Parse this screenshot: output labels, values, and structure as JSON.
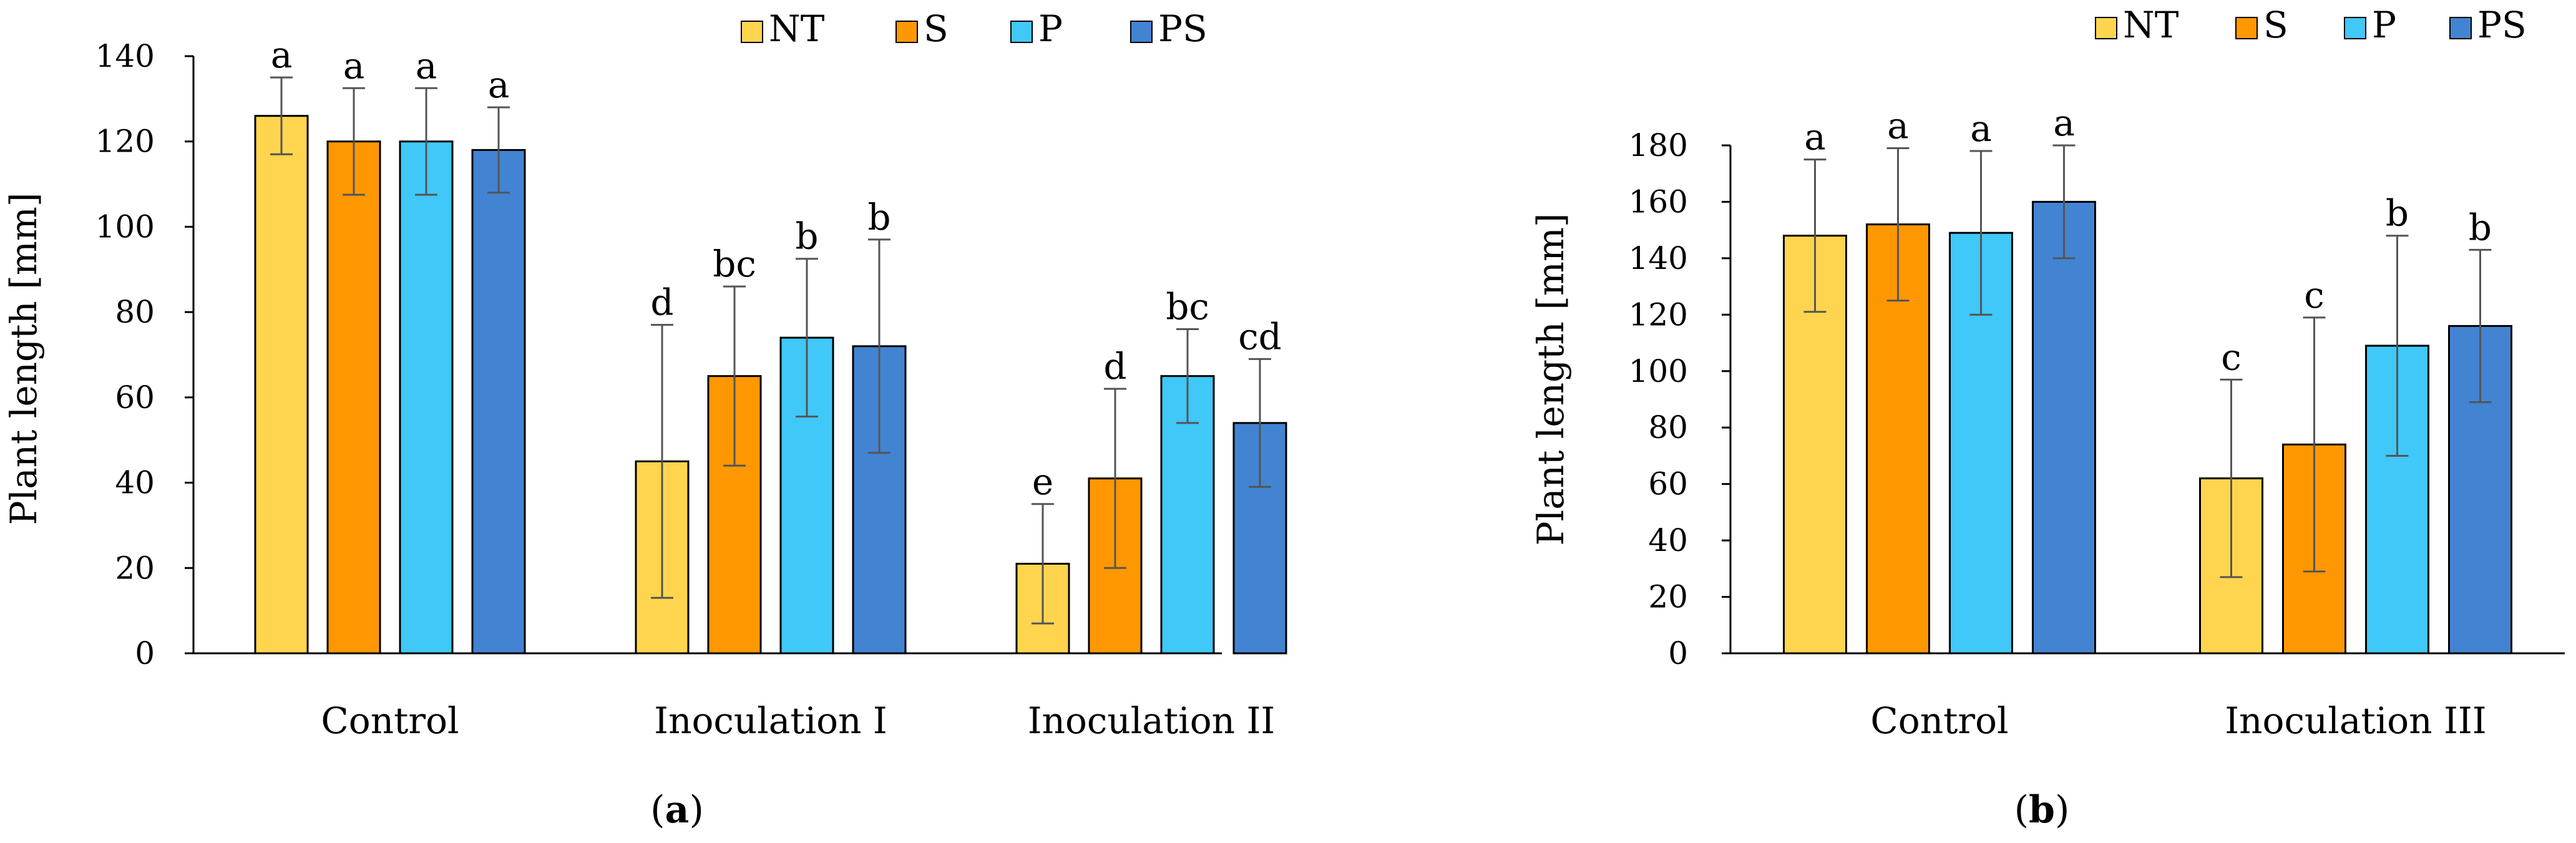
{
  "colors": {
    "NT": "#FFD54F",
    "S": "#FF9800",
    "P": "#40C8F8",
    "PS": "#4284D2",
    "error_bar": "#555555",
    "axis": "#000000"
  },
  "chart_data": [
    {
      "id": "a",
      "type": "bar",
      "panel_label": "a",
      "ylabel": "Plant length [mm]",
      "xlabel": "",
      "ylim": [
        0,
        140
      ],
      "yticks": [
        0,
        20,
        40,
        60,
        80,
        100,
        120,
        140
      ],
      "grid": false,
      "legend_position": "top-right",
      "categories": [
        "Control",
        "Inoculation I",
        "Inoculation II"
      ],
      "series": [
        {
          "name": "NT",
          "color_key": "NT",
          "values": [
            126,
            45,
            21
          ],
          "errors": [
            9,
            32,
            14
          ],
          "letters": [
            "a",
            "d",
            "e"
          ]
        },
        {
          "name": "S",
          "color_key": "S",
          "values": [
            120,
            65,
            41
          ],
          "errors": [
            12.5,
            21,
            21
          ],
          "letters": [
            "a",
            "bc",
            "d"
          ]
        },
        {
          "name": "P",
          "color_key": "P",
          "values": [
            120,
            74,
            65
          ],
          "errors": [
            12.5,
            18.5,
            11
          ],
          "letters": [
            "a",
            "b",
            "bc"
          ]
        },
        {
          "name": "PS",
          "color_key": "PS",
          "values": [
            118,
            72,
            54
          ],
          "errors": [
            10,
            25,
            15
          ],
          "letters": [
            "a",
            "b",
            "cd"
          ]
        }
      ]
    },
    {
      "id": "b",
      "type": "bar",
      "panel_label": "b",
      "ylabel": "Plant length [mm]",
      "xlabel": "",
      "ylim": [
        0,
        180
      ],
      "yticks": [
        0,
        20,
        40,
        60,
        80,
        100,
        120,
        140,
        160,
        180
      ],
      "grid": false,
      "legend_position": "top-right",
      "categories": [
        "Control",
        "Inoculation III"
      ],
      "series": [
        {
          "name": "NT",
          "color_key": "NT",
          "values": [
            148,
            62
          ],
          "errors": [
            27,
            35
          ],
          "letters": [
            "a",
            "c"
          ]
        },
        {
          "name": "S",
          "color_key": "S",
          "values": [
            152,
            74
          ],
          "errors": [
            27,
            45
          ],
          "letters": [
            "a",
            "c"
          ]
        },
        {
          "name": "P",
          "color_key": "P",
          "values": [
            149,
            109
          ],
          "errors": [
            29,
            39
          ],
          "letters": [
            "a",
            "b"
          ]
        },
        {
          "name": "PS",
          "color_key": "PS",
          "values": [
            160,
            116
          ],
          "errors": [
            20,
            27
          ],
          "letters": [
            "a",
            "b"
          ]
        }
      ]
    }
  ]
}
